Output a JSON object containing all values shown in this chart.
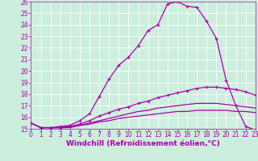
{
  "background_color": "#cceedd",
  "grid_color": "#ffffff",
  "line_color": "#aa00aa",
  "xlabel": "Windchill (Refroidissement éolien,°C)",
  "xlabel_fontsize": 6.5,
  "tick_fontsize": 5.5,
  "xmin": 0,
  "xmax": 23,
  "ymin": 15,
  "ymax": 26,
  "series1_x": [
    0,
    1,
    2,
    3,
    4,
    5,
    6,
    7,
    8,
    9,
    10,
    11,
    12,
    13,
    14,
    15,
    16,
    17,
    18,
    19,
    20,
    21,
    22,
    23
  ],
  "series1_y": [
    15.5,
    15.1,
    15.1,
    15.2,
    15.3,
    15.7,
    16.3,
    17.8,
    19.3,
    20.5,
    21.2,
    22.2,
    23.5,
    24.0,
    25.8,
    26.0,
    25.6,
    25.5,
    24.3,
    22.8,
    19.2,
    17.0,
    15.2,
    14.9
  ],
  "series2_x": [
    0,
    1,
    2,
    3,
    4,
    5,
    6,
    7,
    8,
    9,
    10,
    11,
    12,
    13,
    14,
    15,
    16,
    17,
    18,
    19,
    20,
    21,
    22,
    23
  ],
  "series2_y": [
    15.5,
    15.1,
    15.1,
    15.1,
    15.2,
    15.4,
    15.7,
    16.1,
    16.4,
    16.7,
    16.9,
    17.2,
    17.4,
    17.7,
    17.9,
    18.1,
    18.3,
    18.5,
    18.6,
    18.6,
    18.5,
    18.4,
    18.2,
    17.9
  ],
  "series3_x": [
    0,
    1,
    2,
    3,
    4,
    5,
    6,
    7,
    8,
    9,
    10,
    11,
    12,
    13,
    14,
    15,
    16,
    17,
    18,
    19,
    20,
    21,
    22,
    23
  ],
  "series3_y": [
    15.5,
    15.1,
    15.1,
    15.1,
    15.2,
    15.3,
    15.5,
    15.7,
    15.9,
    16.1,
    16.3,
    16.5,
    16.6,
    16.8,
    16.9,
    17.0,
    17.1,
    17.2,
    17.2,
    17.2,
    17.1,
    17.0,
    16.9,
    16.8
  ],
  "series4_x": [
    0,
    1,
    2,
    3,
    4,
    5,
    6,
    7,
    8,
    9,
    10,
    11,
    12,
    13,
    14,
    15,
    16,
    17,
    18,
    19,
    20,
    21,
    22,
    23
  ],
  "series4_y": [
    15.5,
    15.1,
    15.1,
    15.1,
    15.1,
    15.3,
    15.4,
    15.6,
    15.7,
    15.9,
    16.0,
    16.1,
    16.2,
    16.3,
    16.4,
    16.5,
    16.5,
    16.6,
    16.6,
    16.6,
    16.6,
    16.5,
    16.5,
    16.4
  ]
}
